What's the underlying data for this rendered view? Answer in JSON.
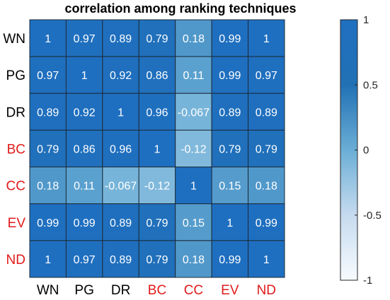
{
  "chart_data": {
    "type": "heatmap",
    "title": "correlation among ranking techniques",
    "row_labels": [
      {
        "text": "WN",
        "color": "#000000"
      },
      {
        "text": "PG",
        "color": "#000000"
      },
      {
        "text": "DR",
        "color": "#000000"
      },
      {
        "text": "BC",
        "color": "#e01b1b"
      },
      {
        "text": "CC",
        "color": "#e01b1b"
      },
      {
        "text": "EV",
        "color": "#e01b1b"
      },
      {
        "text": "ND",
        "color": "#e01b1b"
      }
    ],
    "col_labels": [
      {
        "text": "WN",
        "color": "#000000"
      },
      {
        "text": "PG",
        "color": "#000000"
      },
      {
        "text": "DR",
        "color": "#000000"
      },
      {
        "text": "BC",
        "color": "#e01b1b"
      },
      {
        "text": "CC",
        "color": "#e01b1b"
      },
      {
        "text": "EV",
        "color": "#e01b1b"
      },
      {
        "text": "ND",
        "color": "#e01b1b"
      }
    ],
    "values": [
      [
        "1",
        "0.97",
        "0.89",
        "0.79",
        "0.18",
        "0.99",
        "1"
      ],
      [
        "0.97",
        "1",
        "0.92",
        "0.86",
        "0.11",
        "0.99",
        "0.97"
      ],
      [
        "0.89",
        "0.92",
        "1",
        "0.96",
        "-0.067",
        "0.89",
        "0.89"
      ],
      [
        "0.79",
        "0.86",
        "0.96",
        "1",
        "-0.12",
        "0.79",
        "0.79"
      ],
      [
        "0.18",
        "0.11",
        "-0.067",
        "-0.12",
        "1",
        "0.15",
        "0.18"
      ],
      [
        "0.99",
        "0.99",
        "0.89",
        "0.79",
        "0.15",
        "1",
        "0.99"
      ],
      [
        "1",
        "0.97",
        "0.89",
        "0.79",
        "0.18",
        "0.99",
        "1"
      ]
    ],
    "colorbar": {
      "min": -1,
      "max": 1,
      "ticks": [
        "1",
        "0.5",
        "0",
        "-0.5",
        "-1"
      ],
      "colors": [
        "#f7fbff",
        "#c6dbef",
        "#6baed6",
        "#2171b5",
        "#1f6fc0"
      ]
    }
  }
}
